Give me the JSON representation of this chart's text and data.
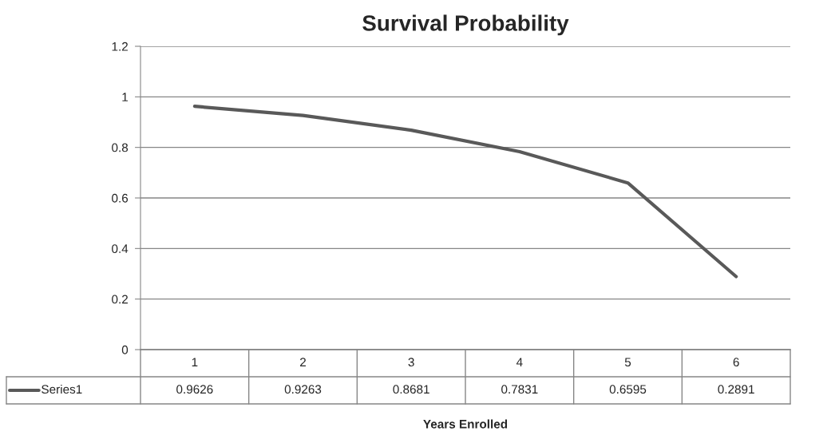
{
  "chart_data": {
    "type": "line",
    "title": "Survival Probability",
    "xlabel": "Years Enrolled",
    "categories": [
      "1",
      "2",
      "3",
      "4",
      "5",
      "6"
    ],
    "series": [
      {
        "name": "Series1",
        "color": "#595959",
        "values": [
          0.9626,
          0.9263,
          0.8681,
          0.7831,
          0.6595,
          0.2891
        ]
      }
    ],
    "ylim": [
      0,
      1.2
    ],
    "yticks": [
      0,
      0.2,
      0.4,
      0.6,
      0.8,
      1,
      1.2
    ],
    "grid": "y",
    "data_labels": true,
    "legend": "bottom",
    "marker": "none",
    "line_style": "solid"
  }
}
